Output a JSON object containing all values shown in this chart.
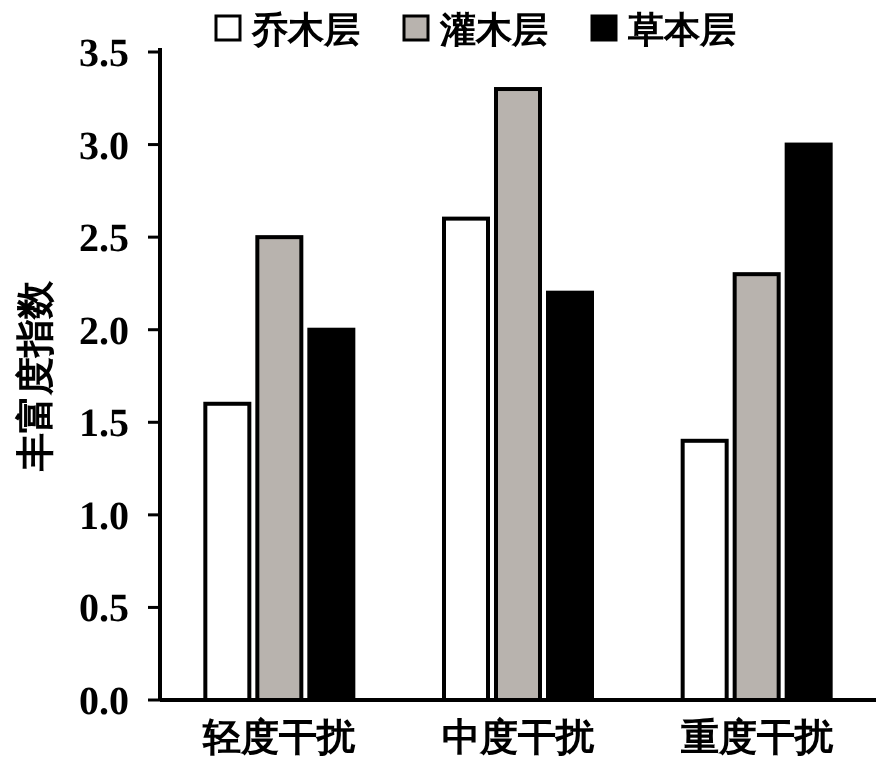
{
  "chart_data": {
    "type": "bar",
    "ylabel": "丰富度指数",
    "categories": [
      "轻度干扰",
      "中度干扰",
      "重度干扰"
    ],
    "series": [
      {
        "name": "乔木层",
        "color": "#ffffff",
        "values": [
          1.6,
          2.6,
          1.4
        ]
      },
      {
        "name": "灌木层",
        "color": "#b8b3ae",
        "values": [
          2.5,
          3.3,
          2.3
        ]
      },
      {
        "name": "草本层",
        "color": "#000000",
        "values": [
          2.0,
          2.2,
          3.0
        ]
      }
    ],
    "ylim": [
      0,
      3.5
    ],
    "yticks": [
      {
        "value": 0,
        "label": "0.0"
      },
      {
        "value": 0.5,
        "label": "0.5"
      },
      {
        "value": 1,
        "label": "1.0"
      },
      {
        "value": 1.5,
        "label": "1.5"
      },
      {
        "value": 2,
        "label": "2.0"
      },
      {
        "value": 2.5,
        "label": "2.5"
      },
      {
        "value": 3,
        "label": "3.0"
      },
      {
        "value": 3.5,
        "label": "3.5"
      }
    ],
    "legend": "top",
    "grid": false
  }
}
